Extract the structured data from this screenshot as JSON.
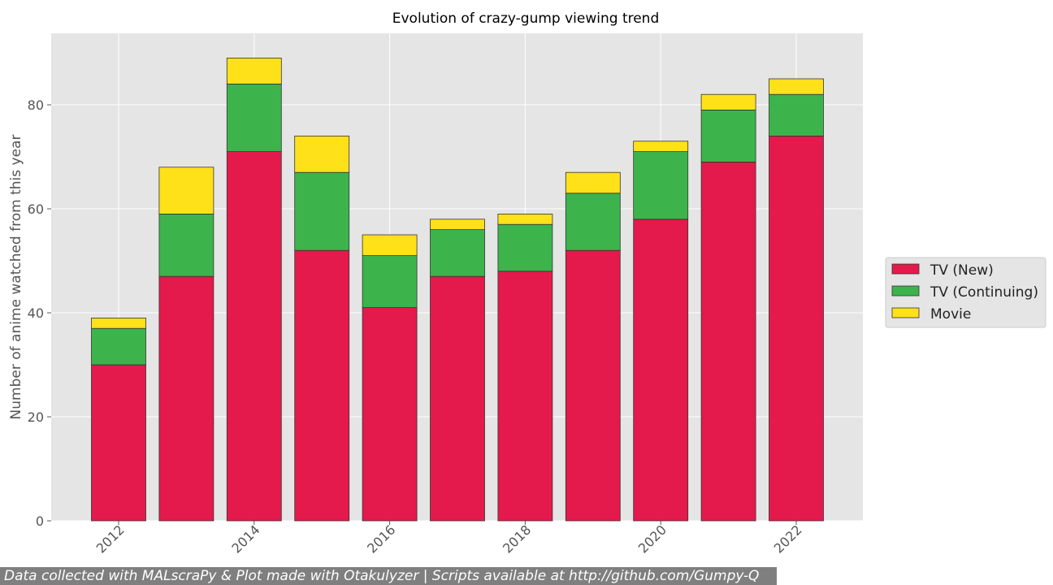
{
  "chart_data": {
    "type": "bar",
    "stacked": true,
    "title": "Evolution of crazy-gump viewing trend",
    "xlabel": "",
    "ylabel": "Number of anime watched from this year",
    "categories": [
      2012,
      2013,
      2014,
      2015,
      2016,
      2017,
      2018,
      2019,
      2020,
      2021,
      2022
    ],
    "x_tick_labels": [
      "2012",
      "2014",
      "2016",
      "2018",
      "2020",
      "2022"
    ],
    "y_ticks": [
      0,
      20,
      40,
      60,
      80
    ],
    "ylim": [
      0,
      93
    ],
    "grid": true,
    "legend_position": "right",
    "series": [
      {
        "name": "TV (New)",
        "color": "#e31a4b",
        "values": [
          30,
          47,
          71,
          52,
          41,
          47,
          48,
          52,
          58,
          69,
          74
        ]
      },
      {
        "name": "TV (Continuing)",
        "color": "#3cb44b",
        "values": [
          7,
          12,
          13,
          15,
          10,
          9,
          9,
          11,
          13,
          10,
          8
        ]
      },
      {
        "name": "Movie",
        "color": "#ffe119",
        "values": [
          2,
          9,
          5,
          7,
          4,
          2,
          2,
          4,
          2,
          3,
          3
        ]
      }
    ]
  },
  "footer": {
    "text": "Data collected with MALscraPy & Plot made with Otakulyzer | Scripts available at http://github.com/Gumpy-Q"
  }
}
